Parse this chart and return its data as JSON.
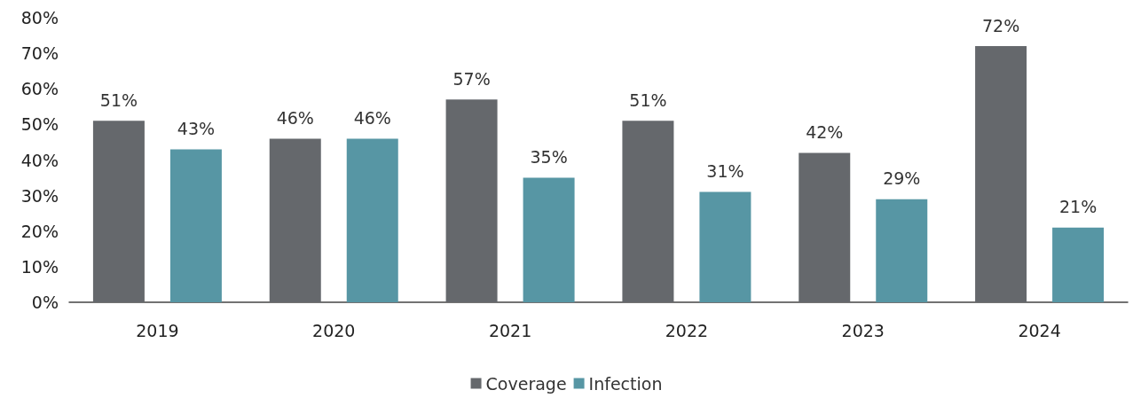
{
  "chart_data": {
    "type": "bar",
    "categories": [
      "2019",
      "2020",
      "2021",
      "2022",
      "2023",
      "2024"
    ],
    "series": [
      {
        "name": "Coverage",
        "color": "#65686c",
        "values": [
          51,
          46,
          57,
          51,
          42,
          72
        ],
        "value_labels": [
          "51%",
          "46%",
          "57%",
          "51%",
          "42%",
          "72%"
        ]
      },
      {
        "name": "Infection",
        "color": "#5796a4",
        "values": [
          43,
          46,
          35,
          31,
          29,
          21
        ],
        "value_labels": [
          "43%",
          "46%",
          "35%",
          "31%",
          "29%",
          "21%"
        ]
      }
    ],
    "ylim": [
      0,
      80
    ],
    "yticks": [
      {
        "value": 0,
        "label": "0%"
      },
      {
        "value": 10,
        "label": "10%"
      },
      {
        "value": 20,
        "label": "20%"
      },
      {
        "value": 30,
        "label": "30%"
      },
      {
        "value": 40,
        "label": "40%"
      },
      {
        "value": 50,
        "label": "50%"
      },
      {
        "value": 60,
        "label": "60%"
      },
      {
        "value": 70,
        "label": "70%"
      },
      {
        "value": 80,
        "label": "80%"
      }
    ],
    "grid": false,
    "legend": "bottom"
  }
}
